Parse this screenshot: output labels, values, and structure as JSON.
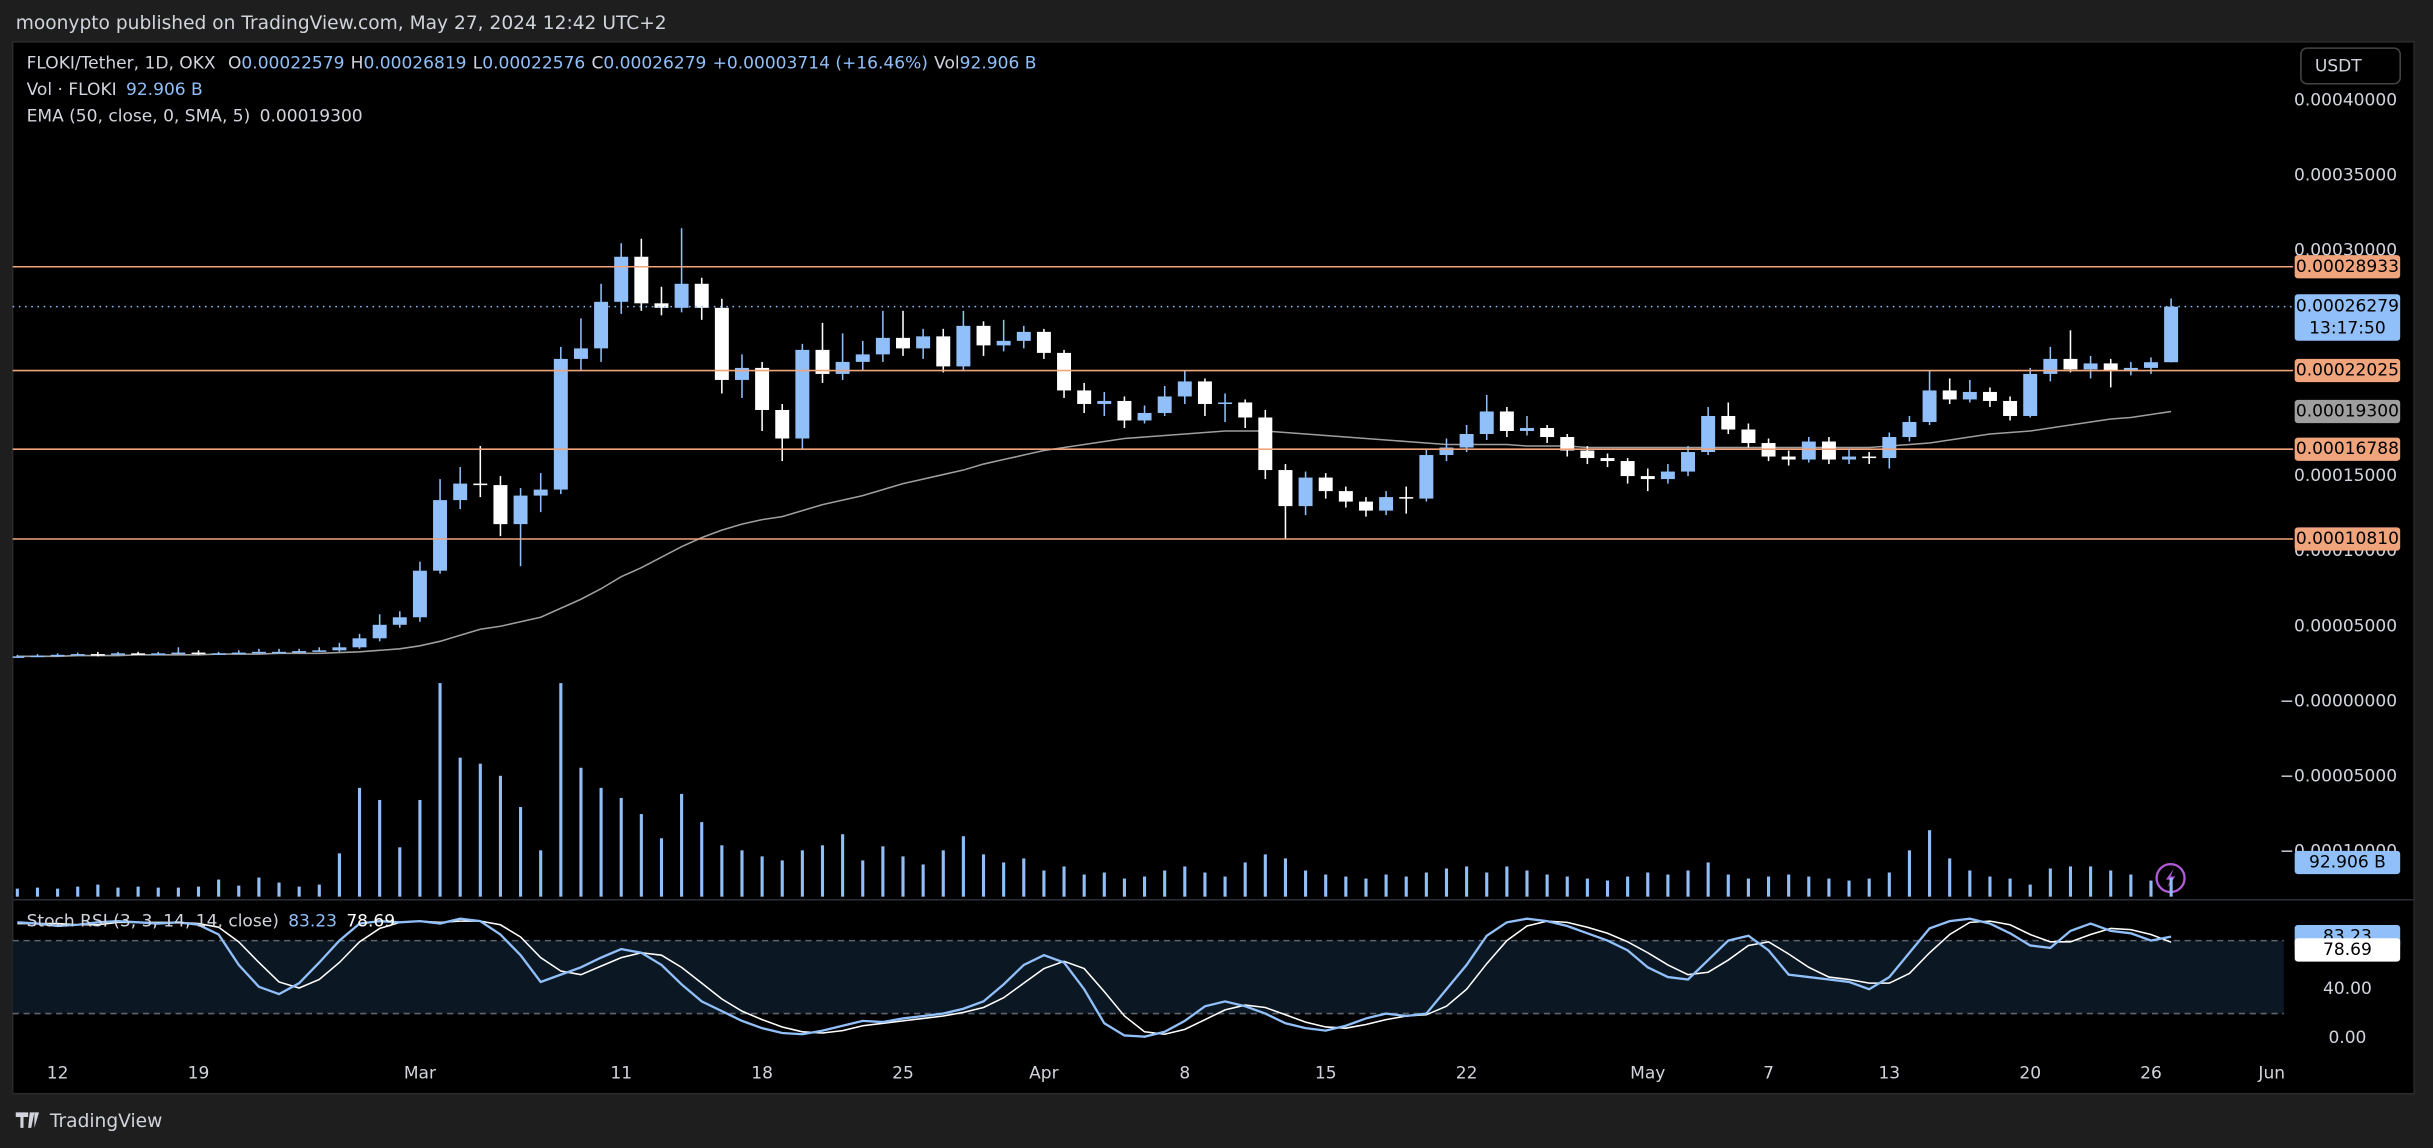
{
  "header": {
    "title": "moonypto published on TradingView.com, May 27, 2024 12:42 UTC+2"
  },
  "legend": {
    "symbol": "FLOKI/Tether, 1D, OKX",
    "ohlc": [
      {
        "label": "O",
        "value": "0.00022579"
      },
      {
        "label": "H",
        "value": "0.00026819"
      },
      {
        "label": "L",
        "value": "0.00022576"
      },
      {
        "label": "C",
        "value": "0.00026279"
      }
    ],
    "change": "+0.00003714 (+16.46%)",
    "vol_prefix": "Vol",
    "vol_name": "Vol · FLOKI",
    "ema_name": "EMA (50, close, 0, SMA, 5)",
    "stoch_name": "Stoch RSI (3, 3, 14, 14, close)"
  },
  "currency": "USDT",
  "countdown": "13:17:50",
  "brand": "TradingView",
  "chart_data": {
    "type": "candlestick",
    "up_color": "#90bff9",
    "down_color": "#ffffff",
    "volume_color": "#90bff9",
    "ema_color": "#9e9e9e",
    "level_color": "#f0a47c",
    "k_color": "#90bff9",
    "d_color": "#ffffff",
    "xlim": [
      -0.85,
      112.6
    ],
    "xticks": [
      {
        "value": 2,
        "label": "12"
      },
      {
        "value": 9,
        "label": "19"
      },
      {
        "value": 20,
        "label": "Mar"
      },
      {
        "value": 30,
        "label": "11"
      },
      {
        "value": 37,
        "label": "18"
      },
      {
        "value": 44,
        "label": "25"
      },
      {
        "value": 51,
        "label": "Apr"
      },
      {
        "value": 58,
        "label": "8"
      },
      {
        "value": 65,
        "label": "15"
      },
      {
        "value": 72,
        "label": "22"
      },
      {
        "value": 81,
        "label": "May"
      },
      {
        "value": 87,
        "label": "7"
      },
      {
        "value": 93,
        "label": "13"
      },
      {
        "value": 100,
        "label": "20"
      },
      {
        "value": 106,
        "label": "26"
      },
      {
        "value": 112,
        "label": "Jun"
      }
    ],
    "ylim": [
      -0.00013,
      0.000438
    ],
    "yticks": [
      {
        "value": 0.0004,
        "label": "0.00040000"
      },
      {
        "value": 0.00035,
        "label": "0.00035000"
      },
      {
        "value": 0.0003,
        "label": "0.00030000"
      },
      {
        "value": 0.00015,
        "label": "0.00015000"
      },
      {
        "value": 0.0001,
        "label": "0.00010000"
      },
      {
        "value": 5e-05,
        "label": "0.00005000"
      },
      {
        "value": 0,
        "label": "−0.00000000"
      },
      {
        "value": -5e-05,
        "label": "−0.00005000"
      },
      {
        "value": -0.0001,
        "label": "−0.00010000"
      }
    ],
    "open": [
      2.95e-05,
      3e-05,
      3.05e-05,
      3.1e-05,
      3.15e-05,
      3.1e-05,
      3.2e-05,
      3.15e-05,
      3.2e-05,
      3.25e-05,
      3.2e-05,
      3.2e-05,
      3.25e-05,
      3.3e-05,
      3.3e-05,
      3.35e-05,
      3.4e-05,
      3.6e-05,
      4.2e-05,
      5.1e-05,
      5.6e-05,
      8.7e-05,
      0.000134,
      0.000145,
      0.000144,
      0.000118,
      0.000137,
      0.000141,
      0.000228,
      0.000235,
      0.000266,
      0.000296,
      0.000265,
      0.000262,
      0.000278,
      0.000262,
      0.000214,
      0.000222,
      0.000194,
      0.000175,
      0.000234,
      0.000218,
      0.000226,
      0.000231,
      0.000242,
      0.000235,
      0.000243,
      0.000223,
      0.00025,
      0.000237,
      0.00024,
      0.000246,
      0.000232,
      0.000207,
      0.000198,
      0.0002,
      0.000187,
      0.000192,
      0.000203,
      0.000213,
      0.000198,
      0.000199,
      0.000189,
      0.000154,
      0.00013,
      0.000149,
      0.00014,
      0.000133,
      0.000127,
      0.000136,
      0.000135,
      0.000164,
      0.000169,
      0.000178,
      0.000193,
      0.00018,
      0.000182,
      0.000176,
      0.000167,
      0.000162,
      0.00016,
      0.00015,
      0.000148,
      0.000153,
      0.000166,
      0.00019,
      0.000181,
      0.000172,
      0.000163,
      0.000161,
      0.000173,
      0.000161,
      0.000163,
      0.000162,
      0.000176,
      0.000186,
      0.000207,
      0.000201,
      0.000206,
      0.0002,
      0.00019,
      0.000218,
      0.000228,
      0.000221,
      0.000225,
      0.00022,
      0.000222,
      0.00022579
    ],
    "high": [
      3.1e-05,
      3.15e-05,
      3.2e-05,
      3.25e-05,
      3.3e-05,
      3.3e-05,
      3.3e-05,
      3.3e-05,
      3.6e-05,
      3.4e-05,
      3.3e-05,
      3.4e-05,
      3.5e-05,
      3.5e-05,
      3.5e-05,
      3.6e-05,
      3.9e-05,
      4.5e-05,
      5.8e-05,
      6e-05,
      9.3e-05,
      0.000148,
      0.000156,
      0.00017,
      0.00015,
      0.000142,
      0.000152,
      0.000236,
      0.000255,
      0.000278,
      0.000305,
      0.000308,
      0.000276,
      0.000315,
      0.000282,
      0.000268,
      0.000231,
      0.000226,
      0.000198,
      0.000238,
      0.000252,
      0.000245,
      0.00024,
      0.00026,
      0.00026,
      0.000248,
      0.000248,
      0.00026,
      0.000253,
      0.000254,
      0.00025,
      0.000248,
      0.000234,
      0.000212,
      0.000206,
      0.000203,
      0.000197,
      0.00021,
      0.00022,
      0.000215,
      0.000205,
      0.000201,
      0.000194,
      0.000158,
      0.000153,
      0.000152,
      0.000143,
      0.000136,
      0.00014,
      0.000143,
      0.000168,
      0.000175,
      0.000184,
      0.000204,
      0.000196,
      0.00019,
      0.000184,
      0.000178,
      0.00017,
      0.000165,
      0.000162,
      0.000155,
      0.000158,
      0.00017,
      0.000196,
      0.000199,
      0.000185,
      0.000175,
      0.000167,
      0.000176,
      0.000176,
      0.000168,
      0.000166,
      0.000179,
      0.00019,
      0.00022,
      0.000215,
      0.000214,
      0.000209,
      0.000203,
      0.000222,
      0.000236,
      0.000247,
      0.00023,
      0.000228,
      0.000226,
      0.000229,
      0.00026819
    ],
    "low": [
      2.9e-05,
      2.95e-05,
      3e-05,
      3.05e-05,
      3e-05,
      3.05e-05,
      3.1e-05,
      3.1e-05,
      3.15e-05,
      3.1e-05,
      3.1e-05,
      3.15e-05,
      3.2e-05,
      3.2e-05,
      3.25e-05,
      3.3e-05,
      3.3e-05,
      3.5e-05,
      4e-05,
      4.9e-05,
      5.3e-05,
      8.5e-05,
      0.000128,
      0.000136,
      0.00011,
      9e-05,
      0.000126,
      0.000138,
      0.00022,
      0.000226,
      0.000258,
      0.00026,
      0.000257,
      0.000259,
      0.000254,
      0.000205,
      0.000202,
      0.00018,
      0.00016,
      0.000168,
      0.000212,
      0.000214,
      0.00022,
      0.000226,
      0.00023,
      0.000228,
      0.000219,
      0.00022,
      0.00023,
      0.000233,
      0.000235,
      0.000228,
      0.000202,
      0.000192,
      0.00019,
      0.000182,
      0.000185,
      0.00019,
      0.000198,
      0.00019,
      0.000186,
      0.000182,
      0.000148,
      0.000108,
      0.000124,
      0.000135,
      0.000129,
      0.000123,
      0.000124,
      0.000125,
      0.000133,
      0.00016,
      0.000166,
      0.000174,
      0.000176,
      0.000177,
      0.000172,
      0.000163,
      0.000158,
      0.000156,
      0.000145,
      0.00014,
      0.000145,
      0.00015,
      0.000164,
      0.000178,
      0.000169,
      0.00016,
      0.000157,
      0.000159,
      0.000158,
      0.000158,
      0.000158,
      0.000155,
      0.000173,
      0.000184,
      0.000198,
      0.000199,
      0.000196,
      0.000187,
      0.000189,
      0.000213,
      0.000219,
      0.000215,
      0.000209,
      0.000217,
      0.000218,
      0.00022576
    ],
    "close": [
      3e-05,
      3.05e-05,
      3.1e-05,
      3.15e-05,
      3.1e-05,
      3.2e-05,
      3.15e-05,
      3.2e-05,
      3.25e-05,
      3.2e-05,
      3.2e-05,
      3.25e-05,
      3.3e-05,
      3.3e-05,
      3.35e-05,
      3.4e-05,
      3.6e-05,
      4.2e-05,
      5.1e-05,
      5.6e-05,
      8.7e-05,
      0.000134,
      0.000145,
      0.000144,
      0.000118,
      0.000137,
      0.000141,
      0.000228,
      0.000235,
      0.000266,
      0.000296,
      0.000265,
      0.000262,
      0.000278,
      0.000262,
      0.000214,
      0.000222,
      0.000194,
      0.000175,
      0.000234,
      0.000218,
      0.000226,
      0.000231,
      0.000242,
      0.000235,
      0.000243,
      0.000223,
      0.00025,
      0.000237,
      0.00024,
      0.000246,
      0.000232,
      0.000207,
      0.000198,
      0.0002,
      0.000187,
      0.000192,
      0.000203,
      0.000213,
      0.000198,
      0.000199,
      0.000189,
      0.000154,
      0.00013,
      0.000149,
      0.00014,
      0.000133,
      0.000127,
      0.000136,
      0.000135,
      0.000164,
      0.000169,
      0.000178,
      0.000193,
      0.00018,
      0.000182,
      0.000176,
      0.000167,
      0.000162,
      0.00016,
      0.00015,
      0.000148,
      0.000153,
      0.000166,
      0.00019,
      0.000181,
      0.000172,
      0.000163,
      0.000161,
      0.000173,
      0.000161,
      0.000163,
      0.000162,
      0.000176,
      0.000186,
      0.000207,
      0.000201,
      0.000206,
      0.0002,
      0.00019,
      0.000218,
      0.000228,
      0.000221,
      0.000225,
      0.00022,
      0.000222,
      0.00022579,
      0.00026279
    ],
    "ema": [
      3e-05,
      3e-05,
      3e-05,
      3.05e-05,
      3.05e-05,
      3.05e-05,
      3.1e-05,
      3.1e-05,
      3.1e-05,
      3.1e-05,
      3.15e-05,
      3.15e-05,
      3.15e-05,
      3.2e-05,
      3.2e-05,
      3.2e-05,
      3.25e-05,
      3.3e-05,
      3.4e-05,
      3.5e-05,
      3.7e-05,
      4e-05,
      4.4e-05,
      4.8e-05,
      5e-05,
      5.3e-05,
      5.6e-05,
      6.2e-05,
      6.8e-05,
      7.5e-05,
      8.3e-05,
      8.9e-05,
      9.6e-05,
      0.000103,
      0.000109,
      0.000114,
      0.000118,
      0.000121,
      0.000123,
      0.000127,
      0.000131,
      0.000134,
      0.000137,
      0.000141,
      0.000145,
      0.000148,
      0.000151,
      0.000154,
      0.000158,
      0.000161,
      0.000164,
      0.000167,
      0.000169,
      0.000171,
      0.000173,
      0.000175,
      0.000176,
      0.000177,
      0.000178,
      0.000179,
      0.00018,
      0.00018,
      0.00018,
      0.000179,
      0.000178,
      0.000177,
      0.000176,
      0.000175,
      0.000174,
      0.000173,
      0.000172,
      0.000171,
      0.000171,
      0.000171,
      0.000171,
      0.00017,
      0.00017,
      0.00017,
      0.000169,
      0.000169,
      0.000169,
      0.000169,
      0.000169,
      0.000169,
      0.000169,
      0.000169,
      0.000169,
      0.000169,
      0.000169,
      0.000169,
      0.000169,
      0.000169,
      0.000169,
      0.00017,
      0.000171,
      0.000172,
      0.000174,
      0.000176,
      0.000178,
      0.000179,
      0.00018,
      0.000182,
      0.000184,
      0.000186,
      0.000188,
      0.000189,
      0.000191,
      0.000193
    ],
    "ema_label": "0.00019300",
    "levels": [
      0.00028933,
      0.00022025,
      0.00016788,
      0.0001081
    ],
    "level_labels": [
      "0.00028933",
      "0.00022025",
      "0.00016788",
      "0.00010810"
    ],
    "vlim": [
      0,
      4235
    ],
    "volume": [
      40,
      45,
      40,
      50,
      60,
      45,
      50,
      45,
      45,
      50,
      85,
      55,
      95,
      70,
      50,
      60,
      215,
      540,
      480,
      245,
      480,
      1060,
      690,
      660,
      600,
      445,
      230,
      1060,
      640,
      540,
      490,
      410,
      290,
      510,
      370,
      255,
      230,
      200,
      180,
      230,
      255,
      310,
      180,
      250,
      200,
      160,
      230,
      300,
      210,
      170,
      190,
      130,
      150,
      110,
      120,
      90,
      100,
      130,
      150,
      120,
      100,
      170,
      210,
      190,
      130,
      110,
      100,
      90,
      110,
      100,
      120,
      140,
      150,
      120,
      150,
      130,
      110,
      100,
      90,
      80,
      100,
      120,
      110,
      130,
      170,
      110,
      90,
      100,
      110,
      100,
      90,
      80,
      90,
      120,
      230,
      330,
      190,
      130,
      100,
      90,
      60,
      140,
      150,
      150,
      130,
      110,
      80,
      92.906
    ],
    "volume_label": "92.906 B",
    "slim": [
      -14,
      111
    ],
    "sticks": [
      {
        "value": 40,
        "label": "40.00"
      },
      {
        "value": 0,
        "label": "0.00"
      }
    ],
    "bands": [
      80,
      20
    ],
    "stoch_k": [
      95,
      94,
      92,
      93,
      95,
      96,
      95,
      94,
      95,
      93,
      85,
      60,
      42,
      36,
      45,
      62,
      80,
      94,
      96,
      95,
      96,
      94,
      98,
      96,
      85,
      68,
      46,
      52,
      58,
      66,
      73,
      70,
      60,
      44,
      30,
      22,
      14,
      8,
      4,
      3,
      6,
      10,
      14,
      13,
      16,
      18,
      20,
      24,
      30,
      44,
      60,
      68,
      62,
      40,
      12,
      2,
      1,
      5,
      14,
      26,
      30,
      26,
      20,
      12,
      8,
      6,
      10,
      16,
      20,
      18,
      20,
      40,
      60,
      84,
      95,
      98,
      96,
      92,
      86,
      80,
      72,
      58,
      50,
      48,
      64,
      80,
      84,
      72,
      52,
      50,
      48,
      46,
      40,
      50,
      70,
      90,
      96,
      98,
      94,
      86,
      76,
      74,
      88,
      94,
      88,
      86,
      80,
      83.23
    ],
    "stoch_d": [
      94,
      94,
      94,
      93,
      93,
      95,
      95,
      95,
      95,
      94,
      91,
      79,
      62,
      46,
      41,
      48,
      62,
      79,
      90,
      95,
      96,
      95,
      96,
      96,
      93,
      83,
      66,
      55,
      52,
      59,
      66,
      70,
      68,
      58,
      45,
      32,
      22,
      15,
      9,
      5,
      4,
      6,
      10,
      12,
      14,
      16,
      18,
      21,
      25,
      33,
      45,
      57,
      63,
      57,
      38,
      18,
      5,
      3,
      7,
      15,
      23,
      27,
      25,
      19,
      13,
      9,
      8,
      11,
      15,
      18,
      19,
      26,
      40,
      61,
      80,
      92,
      96,
      95,
      91,
      86,
      79,
      70,
      60,
      52,
      54,
      64,
      76,
      79,
      69,
      58,
      50,
      48,
      45,
      45,
      53,
      70,
      85,
      95,
      96,
      93,
      85,
      79,
      79,
      85,
      90,
      89,
      85,
      78.69
    ]
  }
}
